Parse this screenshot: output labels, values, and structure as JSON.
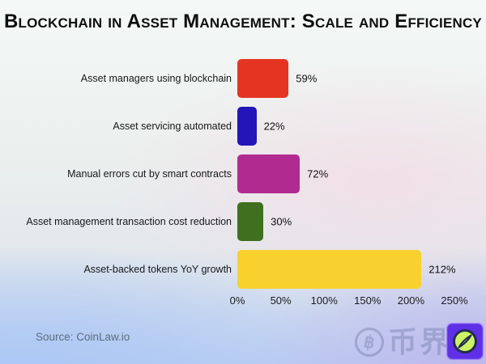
{
  "title": "Blockchain in Asset Management: Scale and Efficiency",
  "source_note": "Source: CoinLaw.io",
  "watermark": {
    "coin_symbol": "฿",
    "brand_text": "币界网"
  },
  "chart_data": {
    "type": "bar",
    "orientation": "horizontal",
    "title": "Blockchain in Asset Management: Scale and Efficiency",
    "categories": [
      "Asset managers using blockchain",
      "Asset servicing automated",
      "Manual errors cut by smart contracts",
      "Asset management transaction cost reduction",
      "Asset-backed tokens YoY growth"
    ],
    "values": [
      59,
      22,
      72,
      30,
      212
    ],
    "value_labels": [
      "59%",
      "22%",
      "72%",
      "30%",
      "212%"
    ],
    "bar_colors": [
      "#e63422",
      "#2415b8",
      "#b12a90",
      "#3e7020",
      "#f8d12e"
    ],
    "x_ticks": [
      "0%",
      "50%",
      "100%",
      "150%",
      "200%",
      "250%"
    ],
    "x_tick_values": [
      0,
      50,
      100,
      150,
      200,
      250
    ],
    "xlim": [
      0,
      250
    ],
    "xlabel": "",
    "ylabel": "",
    "grid": false,
    "legend": false,
    "source": "Source: CoinLaw.io"
  }
}
